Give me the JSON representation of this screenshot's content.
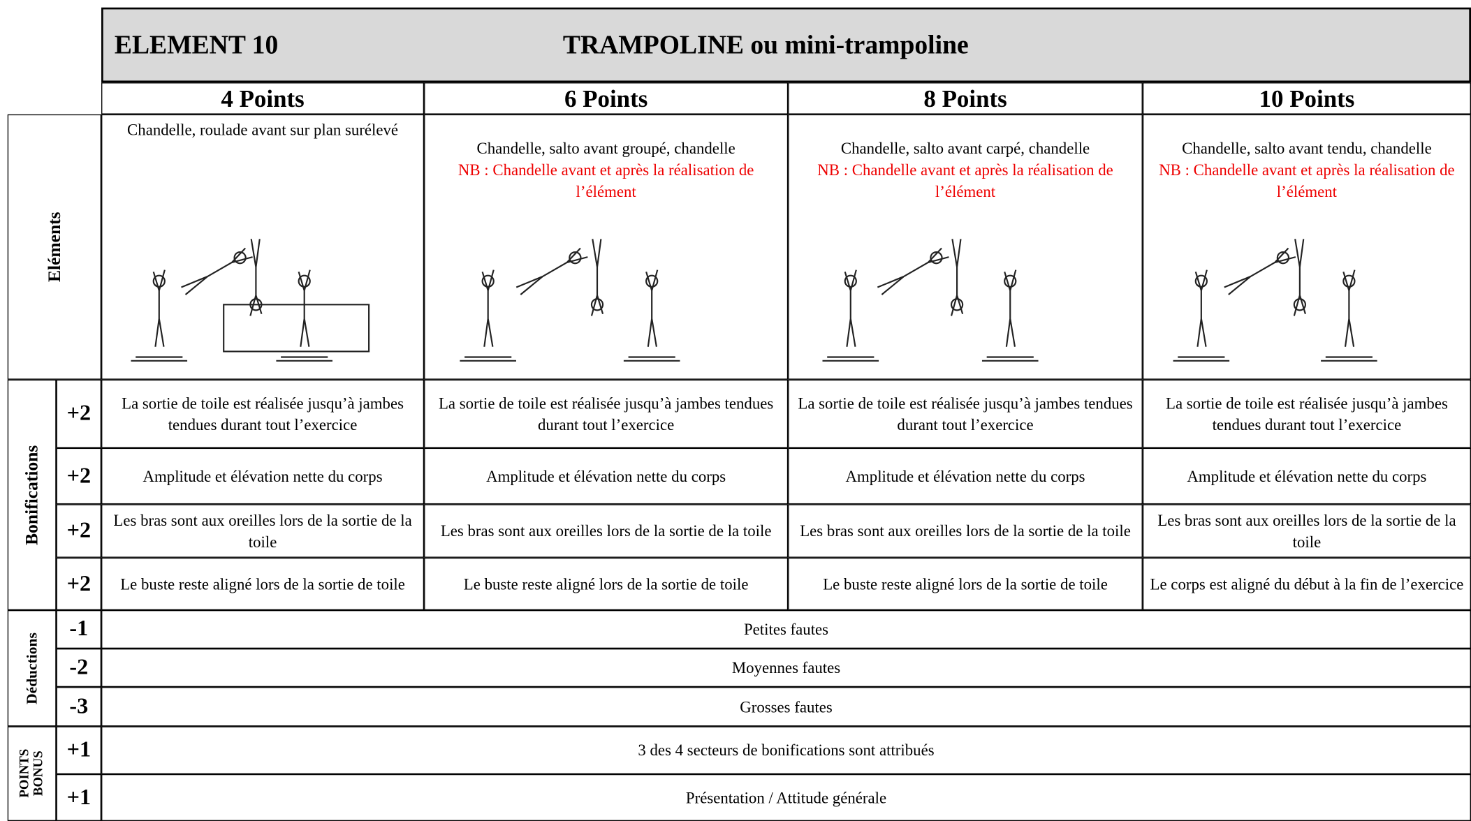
{
  "header": {
    "element": "ELEMENT 10",
    "title": "TRAMPOLINE ou mini-trampoline"
  },
  "columns": [
    "4 Points",
    "6 Points",
    "8 Points",
    "10 Points"
  ],
  "elements": {
    "label": "Eléments",
    "cells": [
      {
        "text": "Chandelle, roulade avant sur plan surélevé"
      },
      {
        "text": "Chandelle, salto avant groupé, chandelle",
        "note": "NB : Chandelle avant et après la réalisation de l’élément"
      },
      {
        "text": "Chandelle, salto avant carpé, chandelle",
        "note": "NB : Chandelle avant et après la réalisation de l’élément"
      },
      {
        "text": "Chandelle, salto avant tendu, chandelle",
        "note": "NB : Chandelle avant et après la réalisation de l’élément"
      }
    ]
  },
  "bonifications": {
    "label": "Bonifications",
    "rows": [
      {
        "points": "+2",
        "cells": [
          "La sortie de toile est réalisée jusqu’à jambes tendues durant tout l’exercice",
          "La sortie de toile est réalisée jusqu’à jambes tendues durant tout l’exercice",
          "La sortie de toile est réalisée jusqu’à jambes tendues durant tout l’exercice",
          "La sortie de toile est réalisée jusqu’à jambes tendues durant tout l’exercice"
        ]
      },
      {
        "points": "+2",
        "cells": [
          "Amplitude et élévation nette du corps",
          "Amplitude et élévation nette du corps",
          "Amplitude et élévation nette du corps",
          "Amplitude et élévation nette du corps"
        ]
      },
      {
        "points": "+2",
        "cells": [
          "Les bras sont aux oreilles lors de la sortie de la toile",
          "Les bras sont aux oreilles lors de la sortie de la toile",
          "Les bras sont aux oreilles lors de la sortie de la toile",
          "Les bras sont aux oreilles lors de la sortie de la toile"
        ]
      },
      {
        "points": "+2",
        "cells": [
          "Le buste reste aligné lors de la sortie de toile",
          "Le buste reste aligné lors de la sortie de toile",
          "Le buste reste aligné lors de la sortie de toile",
          "Le corps est aligné du début à la fin de l’exercice"
        ]
      }
    ]
  },
  "deductions": {
    "label": "Déductions",
    "rows": [
      {
        "points": "-1",
        "text": "Petites fautes"
      },
      {
        "points": "-2",
        "text": "Moyennes fautes"
      },
      {
        "points": "-3",
        "text": "Grosses fautes"
      }
    ]
  },
  "bonus": {
    "label": [
      "POINTS",
      "BONUS"
    ],
    "rows": [
      {
        "points": "+1",
        "text": "3 des 4 secteurs de bonifications sont attribués"
      },
      {
        "points": "+1",
        "text": "Présentation / Attitude générale"
      }
    ]
  }
}
